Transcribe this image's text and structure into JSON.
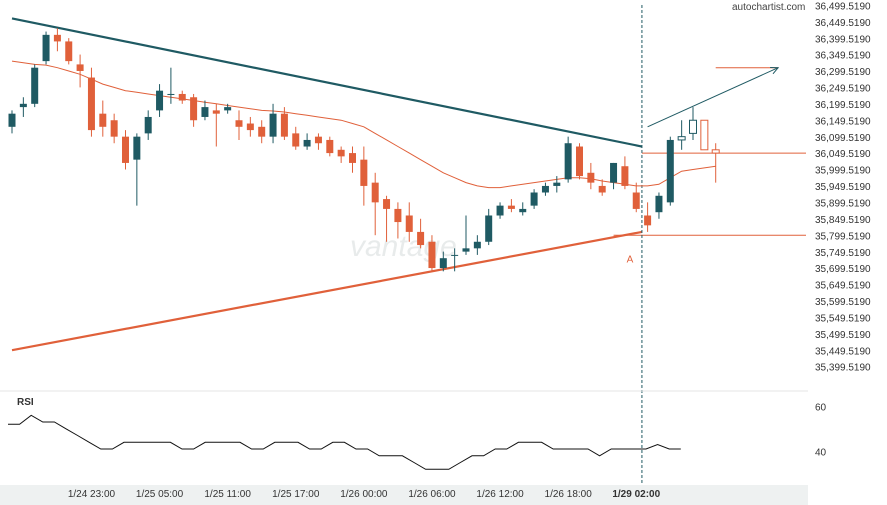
{
  "brand": "autochartist.com",
  "watermark": "vantage",
  "rsi": {
    "title": "RSI",
    "ticks": [
      60,
      40
    ],
    "ymin": 25,
    "ymax": 65,
    "values": [
      52,
      52,
      56,
      53,
      53,
      50,
      47,
      44,
      41,
      41,
      44,
      44,
      44,
      44,
      44,
      41,
      41,
      44,
      44,
      44,
      44,
      41,
      41,
      44,
      44,
      44,
      41,
      41,
      44,
      44,
      41,
      41,
      38,
      38,
      38,
      35,
      32,
      32,
      32,
      35,
      38,
      38,
      41,
      41,
      44,
      44,
      44,
      41,
      41,
      41,
      41,
      38,
      41,
      41,
      41,
      41,
      43,
      41,
      41
    ]
  },
  "chart_data": {
    "type": "candlestick",
    "ylim": [
      35350,
      36510
    ],
    "y_ticks": [
      "36,499.5190",
      "36,449.5190",
      "36,399.5190",
      "36,349.5190",
      "36,299.5190",
      "36,249.5190",
      "36,199.5190",
      "36,149.5190",
      "36,099.5190",
      "36,049.5190",
      "35,999.5190",
      "35,949.5190",
      "35,899.5190",
      "35,849.5190",
      "35,799.5190",
      "35,749.5190",
      "35,699.5190",
      "35,649.5190",
      "35,599.5190",
      "35,549.5190",
      "35,499.5190",
      "35,449.5190",
      "35,399.5190"
    ],
    "y_tick_values": [
      36499.519,
      36449.519,
      36399.519,
      36349.519,
      36299.519,
      36249.519,
      36199.519,
      36149.519,
      36099.519,
      36049.519,
      35999.519,
      35949.519,
      35899.519,
      35849.519,
      35799.519,
      35749.519,
      35699.519,
      35649.519,
      35599.519,
      35549.519,
      35499.519,
      35449.519,
      35399.519
    ],
    "x_labels": [
      {
        "text": "1/24 23:00",
        "index": 7
      },
      {
        "text": "1/25 05:00",
        "index": 13
      },
      {
        "text": "1/25 11:00",
        "index": 19
      },
      {
        "text": "1/25 17:00",
        "index": 25
      },
      {
        "text": "1/26 00:00",
        "index": 31
      },
      {
        "text": "1/26 06:00",
        "index": 37
      },
      {
        "text": "1/26 12:00",
        "index": 43
      },
      {
        "text": "1/26 18:00",
        "index": 49
      },
      {
        "text": "1/29 02:00",
        "index": 55,
        "bold": true
      }
    ],
    "candles": [
      {
        "o": 36130,
        "h": 36180,
        "l": 36110,
        "c": 36170
      },
      {
        "o": 36190,
        "h": 36220,
        "l": 36160,
        "c": 36200
      },
      {
        "o": 36200,
        "h": 36320,
        "l": 36190,
        "c": 36310
      },
      {
        "o": 36330,
        "h": 36420,
        "l": 36320,
        "c": 36410
      },
      {
        "o": 36410,
        "h": 36430,
        "l": 36360,
        "c": 36390
      },
      {
        "o": 36390,
        "h": 36400,
        "l": 36320,
        "c": 36330
      },
      {
        "o": 36320,
        "h": 36350,
        "l": 36250,
        "c": 36300
      },
      {
        "o": 36280,
        "h": 36310,
        "l": 36100,
        "c": 36120
      },
      {
        "o": 36170,
        "h": 36210,
        "l": 36100,
        "c": 36130
      },
      {
        "o": 36150,
        "h": 36170,
        "l": 36080,
        "c": 36100
      },
      {
        "o": 36100,
        "h": 36120,
        "l": 36000,
        "c": 36020
      },
      {
        "o": 36030,
        "h": 36110,
        "l": 35890,
        "c": 36100
      },
      {
        "o": 36110,
        "h": 36180,
        "l": 36090,
        "c": 36160
      },
      {
        "o": 36180,
        "h": 36260,
        "l": 36160,
        "c": 36240
      },
      {
        "o": 36230,
        "h": 36310,
        "l": 36200,
        "c": 36230
      },
      {
        "o": 36230,
        "h": 36240,
        "l": 36200,
        "c": 36210
      },
      {
        "o": 36220,
        "h": 36230,
        "l": 36130,
        "c": 36150
      },
      {
        "o": 36160,
        "h": 36210,
        "l": 36150,
        "c": 36190
      },
      {
        "o": 36180,
        "h": 36200,
        "l": 36070,
        "c": 36170
      },
      {
        "o": 36180,
        "h": 36200,
        "l": 36170,
        "c": 36190
      },
      {
        "o": 36150,
        "h": 36180,
        "l": 36090,
        "c": 36130
      },
      {
        "o": 36140,
        "h": 36160,
        "l": 36100,
        "c": 36120
      },
      {
        "o": 36130,
        "h": 36150,
        "l": 36080,
        "c": 36100
      },
      {
        "o": 36100,
        "h": 36200,
        "l": 36080,
        "c": 36170
      },
      {
        "o": 36170,
        "h": 36190,
        "l": 36090,
        "c": 36100
      },
      {
        "o": 36110,
        "h": 36130,
        "l": 36060,
        "c": 36070
      },
      {
        "o": 36070,
        "h": 36110,
        "l": 36060,
        "c": 36090
      },
      {
        "o": 36100,
        "h": 36110,
        "l": 36060,
        "c": 36080
      },
      {
        "o": 36090,
        "h": 36100,
        "l": 36040,
        "c": 36050
      },
      {
        "o": 36060,
        "h": 36070,
        "l": 36020,
        "c": 36040
      },
      {
        "o": 36050,
        "h": 36070,
        "l": 35990,
        "c": 36020
      },
      {
        "o": 36030,
        "h": 36070,
        "l": 35890,
        "c": 35950
      },
      {
        "o": 35960,
        "h": 35990,
        "l": 35800,
        "c": 35900
      },
      {
        "o": 35910,
        "h": 35920,
        "l": 35780,
        "c": 35880
      },
      {
        "o": 35880,
        "h": 35900,
        "l": 35790,
        "c": 35840
      },
      {
        "o": 35860,
        "h": 35900,
        "l": 35780,
        "c": 35810
      },
      {
        "o": 35810,
        "h": 35850,
        "l": 35760,
        "c": 35770
      },
      {
        "o": 35780,
        "h": 35800,
        "l": 35690,
        "c": 35700
      },
      {
        "o": 35700,
        "h": 35750,
        "l": 35690,
        "c": 35730
      },
      {
        "o": 35740,
        "h": 35760,
        "l": 35690,
        "c": 35740
      },
      {
        "o": 35750,
        "h": 35860,
        "l": 35740,
        "c": 35760
      },
      {
        "o": 35760,
        "h": 35800,
        "l": 35740,
        "c": 35780
      },
      {
        "o": 35780,
        "h": 35880,
        "l": 35770,
        "c": 35860
      },
      {
        "o": 35860,
        "h": 35900,
        "l": 35850,
        "c": 35890
      },
      {
        "o": 35890,
        "h": 35910,
        "l": 35870,
        "c": 35880
      },
      {
        "o": 35870,
        "h": 35900,
        "l": 35860,
        "c": 35880
      },
      {
        "o": 35890,
        "h": 35940,
        "l": 35880,
        "c": 35930
      },
      {
        "o": 35930,
        "h": 35960,
        "l": 35920,
        "c": 35950
      },
      {
        "o": 35950,
        "h": 35980,
        "l": 35930,
        "c": 35960
      },
      {
        "o": 35970,
        "h": 36100,
        "l": 35960,
        "c": 36080
      },
      {
        "o": 36070,
        "h": 36080,
        "l": 35970,
        "c": 35980
      },
      {
        "o": 35990,
        "h": 36020,
        "l": 35940,
        "c": 35960
      },
      {
        "o": 35950,
        "h": 35970,
        "l": 35920,
        "c": 35930
      },
      {
        "o": 35960,
        "h": 36020,
        "l": 35940,
        "c": 36020
      },
      {
        "o": 36010,
        "h": 36040,
        "l": 35940,
        "c": 35950
      },
      {
        "o": 35930,
        "h": 35960,
        "l": 35870,
        "c": 35880
      },
      {
        "o": 35860,
        "h": 35900,
        "l": 35810,
        "c": 35830
      },
      {
        "o": 35870,
        "h": 35930,
        "l": 35850,
        "c": 35920
      },
      {
        "o": 35900,
        "h": 36100,
        "l": 35890,
        "c": 36090
      }
    ],
    "forecast_candles": [
      {
        "o": 36090,
        "h": 36150,
        "l": 36060,
        "c": 36100
      },
      {
        "o": 36110,
        "h": 36190,
        "l": 36090,
        "c": 36150
      },
      {
        "o": 36150,
        "h": 36150,
        "l": 36060,
        "c": 36060
      },
      {
        "o": 36060,
        "h": 36080,
        "l": 35960,
        "c": 36050
      }
    ],
    "moving_average": [
      36330,
      36325,
      36320,
      36318,
      36310,
      36300,
      36290,
      36275,
      36260,
      36250,
      36240,
      36235,
      36230,
      36225,
      36220,
      36215,
      36210,
      36205,
      36200,
      36195,
      36190,
      36185,
      36180,
      36178,
      36175,
      36170,
      36165,
      36160,
      36155,
      36150,
      36140,
      36130,
      36110,
      36090,
      36070,
      36050,
      36030,
      36010,
      35990,
      35975,
      35960,
      35950,
      35945,
      35945,
      35950,
      35955,
      35960,
      35965,
      35970,
      35975,
      35975,
      35972,
      35965,
      35960,
      35955,
      35950,
      35950,
      35955,
      35975,
      35995,
      36000,
      36005,
      36010
    ],
    "resistance_line": {
      "from": {
        "index": 0,
        "value": 36460
      },
      "to": {
        "index": 55.5,
        "value": 36070
      },
      "color": "#1f5a63"
    },
    "support_line": {
      "from": {
        "index": 0,
        "value": 35450
      },
      "to": {
        "index": 55.5,
        "value": 35810
      },
      "color": "#e0603a"
    },
    "breakout_arrow": {
      "from": {
        "index": 56,
        "value": 36130
      },
      "to": {
        "index": 67.5,
        "value": 36310
      },
      "color": "#1f5a63"
    },
    "target_level": {
      "value": 36310,
      "from_index": 62,
      "to_index": 67.5,
      "color": "#e0603a"
    },
    "level_036": {
      "value": 36050,
      "from_index": 55.5,
      "color": "#e0603a"
    },
    "level_low": {
      "value": 35800,
      "from_index": 53,
      "color": "#e0603a"
    },
    "point_label": {
      "text": "A",
      "index": 54.5,
      "value": 35760
    },
    "event_index": 55.5,
    "colors": {
      "bull": "#1f5a63",
      "bear": "#e0603a",
      "ma": "#e0603a"
    }
  }
}
